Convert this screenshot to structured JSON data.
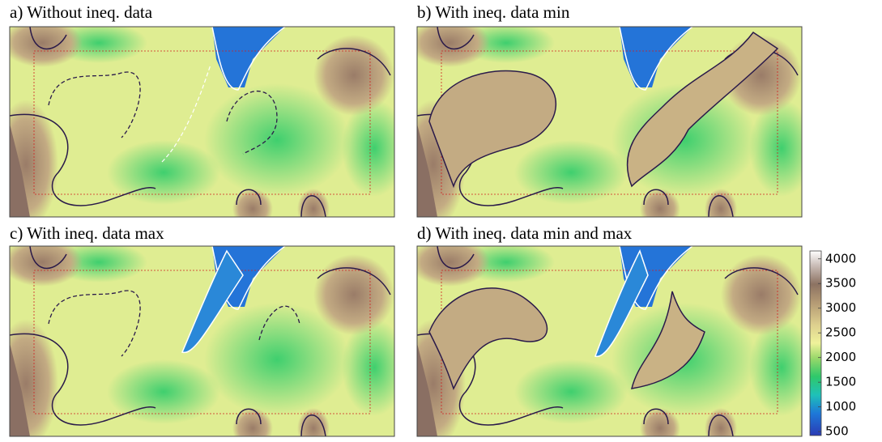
{
  "panels": [
    {
      "title": "a) Without ineq. data"
    },
    {
      "title": "b) With ineq. data min"
    },
    {
      "title": "c) With ineq. data max"
    },
    {
      "title": "d) With ineq. data min and max"
    }
  ],
  "colorbar": {
    "ylim": [
      420,
      4160
    ],
    "yticks": [
      500,
      1000,
      1500,
      2000,
      2500,
      3000,
      3500,
      4000
    ]
  }
}
